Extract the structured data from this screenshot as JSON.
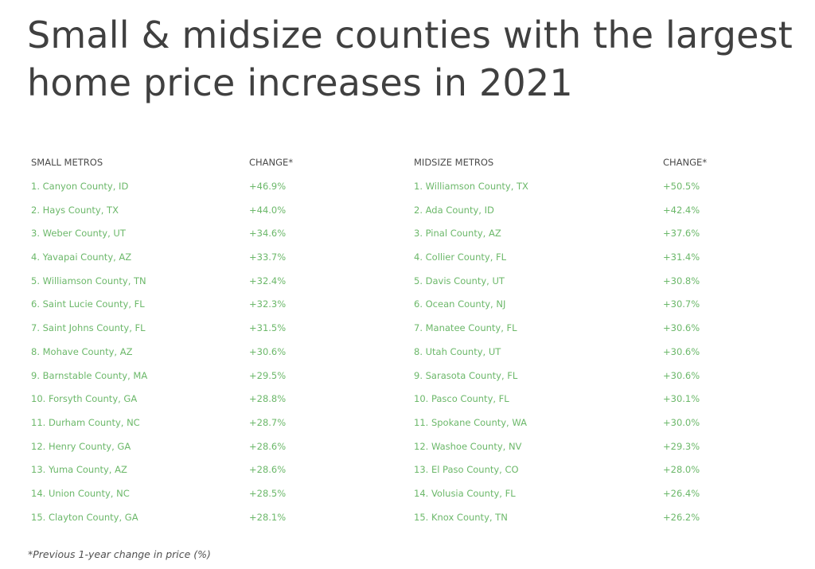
{
  "title": "Small & midsize counties with the largest home price increases in 2021",
  "colors": {
    "title": "#404040",
    "header": "#4a4a4a",
    "row_text": "#6cb86a",
    "footnote": "#505050"
  },
  "small": {
    "header_name": "SMALL METROS",
    "header_change": "CHANGE*",
    "rows": [
      {
        "name": "1. Canyon County, ID",
        "change": "+46.9%"
      },
      {
        "name": "2. Hays County, TX",
        "change": "+44.0%"
      },
      {
        "name": "3. Weber County, UT",
        "change": "+34.6%"
      },
      {
        "name": "4. Yavapai County, AZ",
        "change": "+33.7%"
      },
      {
        "name": "5. Williamson County, TN",
        "change": "+32.4%"
      },
      {
        "name": "6. Saint Lucie County, FL",
        "change": "+32.3%"
      },
      {
        "name": "7. Saint Johns County, FL",
        "change": "+31.5%"
      },
      {
        "name": "8. Mohave County, AZ",
        "change": "+30.6%"
      },
      {
        "name": "9. Barnstable County, MA",
        "change": "+29.5%"
      },
      {
        "name": "10. Forsyth County, GA",
        "change": "+28.8%"
      },
      {
        "name": "11. Durham County, NC",
        "change": "+28.7%"
      },
      {
        "name": "12. Henry County, GA",
        "change": "+28.6%"
      },
      {
        "name": "13. Yuma County, AZ",
        "change": "+28.6%"
      },
      {
        "name": "14. Union County, NC",
        "change": "+28.5%"
      },
      {
        "name": "15. Clayton County, GA",
        "change": "+28.1%"
      }
    ]
  },
  "midsize": {
    "header_name": "MIDSIZE METROS",
    "header_change": "CHANGE*",
    "rows": [
      {
        "name": "1. Williamson County, TX",
        "change": "+50.5%"
      },
      {
        "name": "2. Ada County, ID",
        "change": "+42.4%"
      },
      {
        "name": "3. Pinal County, AZ",
        "change": "+37.6%"
      },
      {
        "name": "4. Collier County, FL",
        "change": "+31.4%"
      },
      {
        "name": "5. Davis County, UT",
        "change": "+30.8%"
      },
      {
        "name": "6. Ocean County, NJ",
        "change": "+30.7%"
      },
      {
        "name": "7. Manatee County, FL",
        "change": "+30.6%"
      },
      {
        "name": "8. Utah County, UT",
        "change": "+30.6%"
      },
      {
        "name": "9. Sarasota County, FL",
        "change": "+30.6%"
      },
      {
        "name": "10. Pasco County, FL",
        "change": "+30.1%"
      },
      {
        "name": "11. Spokane County, WA",
        "change": "+30.0%"
      },
      {
        "name": "12. Washoe County, NV",
        "change": "+29.3%"
      },
      {
        "name": "13. El Paso County, CO",
        "change": "+28.0%"
      },
      {
        "name": "14. Volusia County, FL",
        "change": "+26.4%"
      },
      {
        "name": "15. Knox County, TN",
        "change": "+26.2%"
      }
    ]
  },
  "footnote": "*Previous 1-year change in price (%)",
  "chart_data": {
    "type": "table",
    "title": "Small & midsize counties with the largest home price increases in 2021",
    "footnote": "*Previous 1-year change in price (%)",
    "tables": [
      {
        "name": "SMALL METROS",
        "columns": [
          "SMALL METROS",
          "CHANGE*"
        ],
        "categories": [
          "Canyon County, ID",
          "Hays County, TX",
          "Weber County, UT",
          "Yavapai County, AZ",
          "Williamson County, TN",
          "Saint Lucie County, FL",
          "Saint Johns County, FL",
          "Mohave County, AZ",
          "Barnstable County, MA",
          "Forsyth County, GA",
          "Durham County, NC",
          "Henry County, GA",
          "Yuma County, AZ",
          "Union County, NC",
          "Clayton County, GA"
        ],
        "values": [
          46.9,
          44.0,
          34.6,
          33.7,
          32.4,
          32.3,
          31.5,
          30.6,
          29.5,
          28.8,
          28.7,
          28.6,
          28.6,
          28.5,
          28.1
        ]
      },
      {
        "name": "MIDSIZE METROS",
        "columns": [
          "MIDSIZE METROS",
          "CHANGE*"
        ],
        "categories": [
          "Williamson County, TX",
          "Ada County, ID",
          "Pinal County, AZ",
          "Collier County, FL",
          "Davis County, UT",
          "Ocean County, NJ",
          "Manatee County, FL",
          "Utah County, UT",
          "Sarasota County, FL",
          "Pasco County, FL",
          "Spokane County, WA",
          "Washoe County, NV",
          "El Paso County, CO",
          "Volusia County, FL",
          "Knox County, TN"
        ],
        "values": [
          50.5,
          42.4,
          37.6,
          31.4,
          30.8,
          30.7,
          30.6,
          30.6,
          30.6,
          30.1,
          30.0,
          29.3,
          28.0,
          26.4,
          26.2
        ]
      }
    ]
  }
}
